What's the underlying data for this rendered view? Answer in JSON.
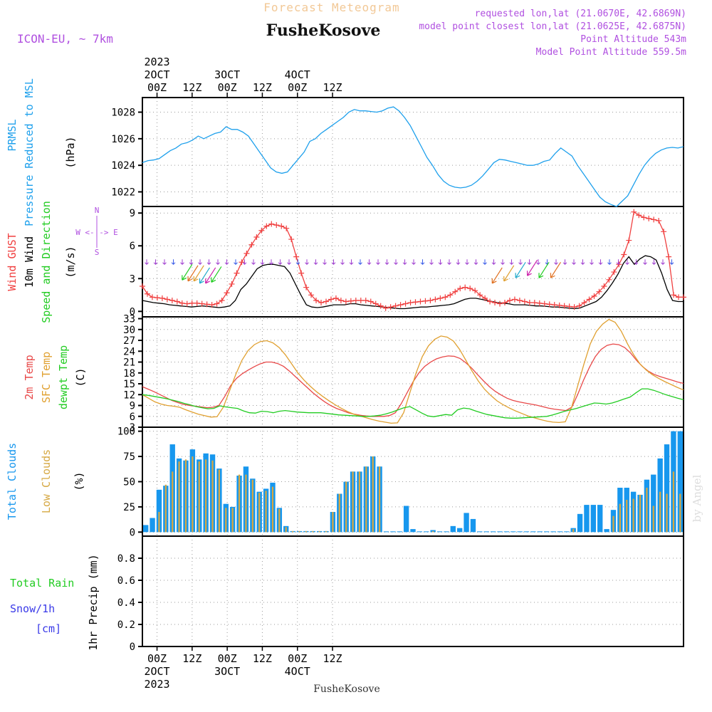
{
  "header": {
    "subtitle": "Forecast Meteogram",
    "model": "ICON-EU, ~ 7km",
    "location": "FusheKosove",
    "footer_location": "FusheKosove",
    "info": [
      "requested lon,lat (21.0670E, 42.6869N)",
      "model point closest lon,lat (21.0625E, 42.6875N)",
      "Point Altitude 543m",
      "Model Point Altitude 559.5m"
    ],
    "watermark": "by Angel"
  },
  "time_axis": {
    "top_ticks": [
      {
        "label": "00Z",
        "date": "2OCT",
        "year": "2023"
      },
      {
        "label": "12Z"
      },
      {
        "label": "00Z",
        "date": "3OCT"
      },
      {
        "label": "12Z"
      },
      {
        "label": "00Z",
        "date": "4OCT"
      },
      {
        "label": "12Z"
      }
    ],
    "bottom_ticks": [
      {
        "label": "00Z",
        "date": "2OCT",
        "year": "2023"
      },
      {
        "label": "12Z"
      },
      {
        "label": "00Z",
        "date": "3OCT"
      },
      {
        "label": "12Z"
      },
      {
        "label": "00Z",
        "date": "4OCT"
      },
      {
        "label": "12Z"
      }
    ]
  },
  "colors": {
    "pressure": "#1ea0ec",
    "gust": "#f04040",
    "wind": "#000000",
    "t2m": "#e84848",
    "tsfc": "#e0a030",
    "dewpt": "#22cc22",
    "total_clouds": "#1797ee",
    "low_clouds": "#d6a842",
    "purple": "#b050e0",
    "rain": "#22cc22",
    "snow": "#3a3ae8"
  },
  "chart_data": [
    {
      "type": "line",
      "panel": "pressure",
      "ylabel_lines": [
        "PRMSL",
        "Pressure Reduced to MSL"
      ],
      "unit": "(hPa)",
      "yticks": [
        1022,
        1024,
        1026,
        1028
      ],
      "ylim": [
        1020.9,
        1029.1
      ],
      "x_hours": [
        -5,
        -4,
        -3,
        -2,
        -1,
        0,
        1,
        2,
        3,
        4,
        5,
        6,
        7,
        8,
        9,
        10,
        11,
        12,
        13,
        14,
        15,
        16,
        17,
        18,
        19,
        20,
        21,
        22,
        23,
        24,
        25,
        26,
        27,
        28,
        29,
        30,
        31,
        32,
        33,
        34,
        35,
        36,
        37,
        38,
        39,
        40,
        41,
        42,
        43,
        44,
        45,
        46,
        47,
        48,
        49,
        50,
        51,
        52,
        53,
        54,
        55,
        56,
        57,
        58,
        59,
        60,
        61,
        62,
        63,
        64,
        65,
        66,
        67,
        68,
        69,
        70,
        71,
        72,
        73,
        74,
        75,
        76,
        77,
        78,
        79,
        80,
        81,
        82,
        83,
        84,
        85,
        86,
        87,
        88,
        89,
        90,
        91,
        92,
        93,
        94,
        95,
        96,
        97,
        98,
        99,
        100,
        101,
        102,
        103,
        104,
        105,
        106,
        107,
        108,
        109,
        110,
        111,
        112,
        113,
        114,
        115,
        116,
        117,
        118,
        119,
        120,
        121,
        122,
        123,
        124,
        125,
        126,
        127,
        128,
        129,
        130,
        131,
        132,
        133,
        134,
        135,
        136,
        137,
        138,
        139,
        140,
        141,
        142,
        143,
        144,
        145,
        146,
        147,
        148,
        149,
        150,
        151,
        152,
        153,
        154,
        155,
        156,
        157,
        158,
        159,
        160,
        161,
        162,
        163,
        164,
        165,
        166,
        167,
        168,
        169,
        170,
        171,
        172,
        173,
        174,
        175,
        176,
        177,
        178,
        179,
        180
      ],
      "series": [
        {
          "name": "PRMSL",
          "values": [
            1024.2,
            1024.35,
            1024.4,
            1024.5,
            1024.8,
            1025.1,
            1025.3,
            1025.6,
            1025.7,
            1025.9,
            1026.2,
            1026.0,
            1026.2,
            1026.4,
            1026.5,
            1026.9,
            1026.7,
            1026.7,
            1026.5,
            1026.2,
            1025.6,
            1025.0,
            1024.4,
            1023.8,
            1023.5,
            1023.4,
            1023.5,
            1024.0,
            1024.5,
            1025.0,
            1025.8,
            1026.0,
            1026.4,
            1026.7,
            1027.0,
            1027.3,
            1027.6,
            1028.0,
            1028.2,
            1028.1,
            1028.1,
            1028.05,
            1028.0,
            1028.1,
            1028.3,
            1028.4,
            1028.1,
            1027.6,
            1027.0,
            1026.2,
            1025.4,
            1024.6,
            1024.0,
            1023.3,
            1022.8,
            1022.5,
            1022.35,
            1022.3,
            1022.35,
            1022.5,
            1022.8,
            1023.2,
            1023.7,
            1024.2,
            1024.45,
            1024.4,
            1024.3,
            1024.2,
            1024.1,
            1024.0,
            1024.0,
            1024.1,
            1024.3,
            1024.4,
            1024.9,
            1025.3,
            1025.0,
            1024.7,
            1024.0,
            1023.4,
            1022.8,
            1022.2,
            1021.6,
            1021.25,
            1021.05,
            1020.9,
            1021.3,
            1021.7,
            1022.5,
            1023.3,
            1024.0,
            1024.5,
            1024.9,
            1025.15,
            1025.3,
            1025.35,
            1025.3,
            1025.4
          ]
        }
      ]
    },
    {
      "type": "line",
      "panel": "wind",
      "ylabel_lines": [
        "Wind GUST",
        "10m Wind",
        "Speed and Direction"
      ],
      "unit": "(m/s)",
      "compass": [
        "N",
        "W <-|-> E",
        "S"
      ],
      "yticks": [
        0,
        3,
        6,
        9
      ],
      "ylim": [
        -0.5,
        9.6
      ],
      "series": [
        {
          "name": "Wind GUST",
          "values": [
            2.3,
            1.6,
            1.3,
            1.25,
            1.2,
            1.1,
            1.0,
            0.9,
            0.75,
            0.7,
            0.75,
            0.75,
            0.7,
            0.65,
            0.6,
            0.7,
            1.0,
            1.7,
            2.5,
            3.5,
            4.5,
            5.3,
            6.1,
            6.8,
            7.4,
            7.8,
            8.0,
            7.9,
            7.8,
            7.6,
            6.6,
            5.0,
            3.5,
            2.2,
            1.5,
            1.0,
            0.8,
            0.9,
            1.1,
            1.2,
            1.0,
            0.9,
            0.95,
            1.0,
            1.0,
            1.0,
            0.9,
            0.7,
            0.5,
            0.3,
            0.4,
            0.5,
            0.6,
            0.7,
            0.8,
            0.85,
            0.9,
            0.95,
            1.0,
            1.1,
            1.2,
            1.3,
            1.5,
            1.8,
            2.1,
            2.2,
            2.1,
            1.9,
            1.5,
            1.2,
            0.9,
            0.8,
            0.7,
            0.8,
            1.0,
            1.1,
            1.0,
            0.9,
            0.8,
            0.8,
            0.75,
            0.7,
            0.65,
            0.6,
            0.55,
            0.5,
            0.45,
            0.4,
            0.5,
            0.8,
            1.1,
            1.4,
            1.8,
            2.3,
            2.9,
            3.6,
            4.3,
            5.2,
            6.5,
            9.1,
            8.8,
            8.6,
            8.5,
            8.4,
            8.3,
            7.3,
            5.0,
            1.5,
            1.3,
            1.3
          ]
        },
        {
          "name": "10m Wind",
          "values": [
            1.0,
            0.9,
            0.8,
            0.75,
            0.7,
            0.6,
            0.55,
            0.5,
            0.45,
            0.4,
            0.45,
            0.5,
            0.45,
            0.4,
            0.35,
            0.4,
            0.5,
            1.0,
            2.0,
            2.5,
            3.2,
            3.9,
            4.2,
            4.3,
            4.3,
            4.2,
            4.1,
            3.5,
            2.5,
            1.5,
            0.6,
            0.4,
            0.35,
            0.4,
            0.5,
            0.6,
            0.6,
            0.6,
            0.7,
            0.7,
            0.6,
            0.55,
            0.5,
            0.45,
            0.4,
            0.35,
            0.3,
            0.25,
            0.25,
            0.3,
            0.35,
            0.4,
            0.4,
            0.45,
            0.5,
            0.55,
            0.6,
            0.7,
            0.9,
            1.1,
            1.2,
            1.2,
            1.1,
            1.0,
            0.9,
            0.8,
            0.75,
            0.7,
            0.6,
            0.6,
            0.6,
            0.55,
            0.5,
            0.5,
            0.45,
            0.4,
            0.4,
            0.35,
            0.3,
            0.25,
            0.3,
            0.5,
            0.7,
            0.9,
            1.3,
            1.9,
            2.6,
            3.4,
            4.4,
            5.0,
            4.3,
            4.8,
            5.1,
            5.0,
            4.7,
            3.5,
            2.0,
            1.0,
            0.9,
            0.9
          ]
        }
      ]
    },
    {
      "type": "line",
      "panel": "temperature",
      "ylabel_lines": [
        "2m Temp",
        "SFC Temp",
        "dewpt Temp"
      ],
      "unit": "(C)",
      "yticks": [
        3,
        6,
        9,
        12,
        15,
        18,
        21,
        24,
        27,
        30,
        33
      ],
      "ylim": [
        3,
        33.5
      ],
      "series": [
        {
          "name": "2m Temp",
          "values": [
            14.2,
            13.5,
            12.8,
            12.0,
            11.2,
            10.4,
            9.8,
            9.3,
            9.0,
            8.8,
            8.6,
            8.4,
            8.5,
            9.0,
            11.5,
            14.5,
            16.5,
            17.8,
            18.8,
            19.7,
            20.5,
            21.0,
            21.0,
            20.6,
            19.8,
            18.5,
            17.0,
            15.5,
            14.0,
            12.5,
            11.2,
            10.0,
            9.0,
            8.2,
            7.6,
            7.0,
            6.6,
            6.3,
            6.1,
            6.0,
            6.0,
            6.0,
            6.2,
            7.0,
            9.5,
            12.5,
            15.5,
            18.0,
            19.8,
            21.0,
            21.9,
            22.4,
            22.7,
            22.6,
            22.0,
            20.8,
            19.3,
            17.5,
            15.8,
            14.2,
            12.9,
            11.9,
            11.0,
            10.4,
            10.0,
            9.7,
            9.4,
            9.1,
            8.7,
            8.3,
            8.0,
            7.8,
            7.6,
            8.5,
            12.0,
            16.0,
            19.5,
            22.5,
            24.5,
            25.6,
            26.0,
            25.8,
            25.0,
            23.5,
            21.5,
            19.8,
            18.5,
            17.6,
            17.0,
            16.5,
            16.0,
            15.5,
            15.1
          ]
        },
        {
          "name": "SFC Temp",
          "values": [
            12.0,
            11.0,
            10.0,
            9.4,
            9.0,
            8.8,
            8.5,
            7.8,
            7.2,
            6.6,
            6.2,
            5.8,
            5.9,
            8.5,
            13.0,
            17.5,
            21.5,
            24.2,
            25.8,
            26.7,
            26.9,
            26.3,
            25.0,
            23.0,
            20.5,
            18.0,
            16.0,
            14.3,
            12.8,
            11.5,
            10.3,
            9.2,
            8.2,
            7.3,
            6.6,
            6.1,
            5.6,
            5.1,
            4.7,
            4.4,
            4.1,
            4.2,
            7.0,
            12.5,
            18.0,
            22.5,
            25.5,
            27.3,
            28.2,
            27.9,
            26.8,
            24.5,
            21.5,
            18.5,
            15.8,
            13.5,
            11.8,
            10.3,
            9.2,
            8.3,
            7.5,
            6.8,
            6.1,
            5.6,
            5.1,
            4.7,
            4.4,
            4.3,
            4.5,
            8.5,
            14.5,
            20.5,
            26.0,
            29.5,
            31.5,
            32.8,
            32.0,
            29.5,
            26.0,
            23.0,
            20.5,
            18.8,
            17.5,
            16.5,
            15.6,
            14.8,
            14.0,
            13.3
          ]
        },
        {
          "name": "dewpt Temp",
          "values": [
            12.0,
            11.8,
            11.5,
            11.2,
            10.9,
            10.5,
            10.1,
            9.6,
            9.2,
            8.7,
            8.4,
            8.1,
            8.2,
            8.9,
            8.6,
            8.4,
            8.2,
            7.5,
            7.0,
            6.9,
            7.4,
            7.3,
            7.0,
            7.4,
            7.6,
            7.4,
            7.2,
            7.1,
            7.0,
            7.0,
            7.0,
            6.8,
            6.6,
            6.4,
            6.3,
            6.2,
            6.1,
            6.0,
            6.0,
            6.1,
            6.3,
            6.7,
            7.2,
            7.8,
            8.4,
            8.7,
            7.8,
            6.9,
            6.1,
            5.9,
            6.2,
            6.5,
            6.3,
            7.8,
            8.3,
            8.1,
            7.5,
            7.0,
            6.5,
            6.2,
            5.9,
            5.6,
            5.5,
            5.5,
            5.6,
            5.7,
            5.8,
            5.9,
            6.0,
            6.4,
            6.9,
            7.4,
            7.8,
            8.2,
            8.7,
            9.2,
            9.7,
            9.6,
            9.4,
            9.7,
            10.2,
            10.8,
            11.3,
            12.5,
            13.6,
            13.6,
            13.2,
            12.6,
            12.0,
            11.5,
            11.0,
            10.6
          ]
        }
      ]
    },
    {
      "type": "bar",
      "panel": "clouds",
      "ylabel_lines": [
        "Total Clouds",
        "Low Clouds"
      ],
      "unit": "(%)",
      "yticks": [
        0,
        25,
        50,
        75,
        100
      ],
      "ylim": [
        -4,
        104
      ],
      "series": [
        {
          "name": "Total Clouds",
          "values": [
            7,
            14,
            42,
            46,
            87,
            73,
            71,
            82,
            72,
            78,
            77,
            63,
            28,
            25,
            56,
            65,
            53,
            40,
            43,
            49,
            24,
            6,
            1,
            1,
            1,
            1,
            1,
            1,
            20,
            38,
            50,
            60,
            60,
            65,
            75,
            65,
            0,
            0,
            0,
            26,
            3,
            0,
            0,
            2,
            0,
            0,
            6,
            4,
            19,
            13,
            0,
            0,
            0,
            0,
            0,
            0,
            0,
            0,
            0,
            0,
            0,
            0,
            0,
            0,
            4,
            18,
            27,
            27,
            27,
            3,
            22,
            44,
            44,
            40,
            37,
            52,
            57,
            73,
            87,
            100,
            100
          ]
        },
        {
          "name": "Low Clouds",
          "values": [
            0,
            0,
            20,
            47,
            60,
            70,
            72,
            75,
            70,
            72,
            71,
            62,
            24,
            24,
            57,
            57,
            52,
            39,
            41,
            45,
            23,
            5,
            1,
            1,
            1,
            1,
            1,
            1,
            20,
            38,
            50,
            60,
            60,
            65,
            75,
            65,
            0,
            0,
            0,
            0,
            0,
            0,
            0,
            1,
            0,
            0,
            0,
            0,
            0,
            0,
            0,
            0,
            0,
            0,
            0,
            0,
            0,
            0,
            0,
            0,
            0,
            0,
            0,
            0,
            3,
            0,
            0,
            0,
            0,
            0,
            16,
            28,
            32,
            33,
            37,
            44,
            26,
            40,
            38,
            60,
            38
          ]
        }
      ]
    },
    {
      "type": "bar",
      "panel": "precip",
      "ylabel_lines": [
        "Total  Rain",
        "Snow/1h",
        "[cm]"
      ],
      "axis_label": "1hr Precip (mm)",
      "yticks": [
        "0",
        "0.2",
        "0.4",
        "0.6",
        "0.8"
      ],
      "ylim": [
        0,
        1.0
      ],
      "series": []
    }
  ]
}
